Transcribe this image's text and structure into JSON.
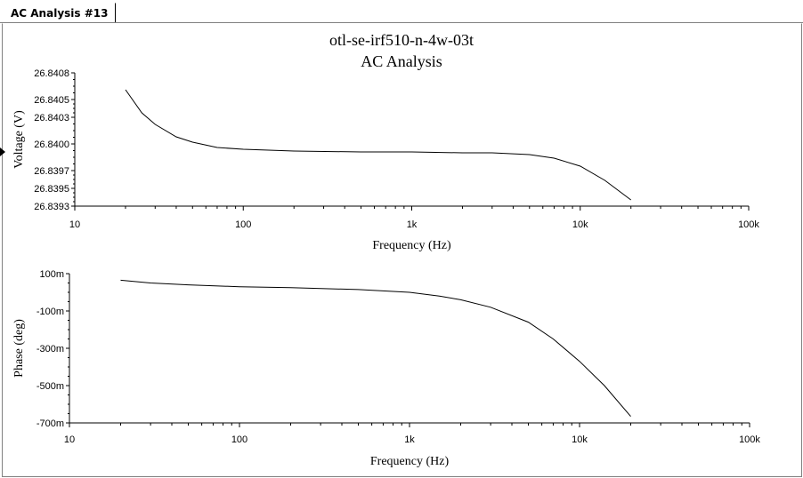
{
  "window": {
    "tab_label": "AC Analysis #13"
  },
  "chart_data": [
    {
      "type": "line",
      "title": "otl-se-irf510-n-4w-03t",
      "subtitle": "AC Analysis",
      "xlabel": "Frequency (Hz)",
      "ylabel": "Voltage (V)",
      "xscale": "log",
      "xlim": [
        10,
        100000
      ],
      "ylim": [
        26.8393,
        26.8408
      ],
      "x_ticks": [
        10,
        100,
        1000,
        10000,
        100000
      ],
      "x_tick_labels": [
        "10",
        "100",
        "1k",
        "10k",
        "100k"
      ],
      "y_ticks": [
        26.8393,
        26.8395,
        26.8397,
        26.84,
        26.8403,
        26.8405,
        26.8408
      ],
      "y_tick_labels": [
        "26.8393",
        "26.8395",
        "26.8397",
        "26.8400",
        "26.8403",
        "26.8405",
        "26.8408"
      ],
      "grid": false,
      "line_color": "#000000",
      "x": [
        20,
        25,
        30,
        40,
        50,
        70,
        100,
        200,
        500,
        1000,
        2000,
        3000,
        5000,
        7000,
        10000,
        14000,
        20000
      ],
      "y": [
        26.84061,
        26.84035,
        26.84022,
        26.84008,
        26.84002,
        26.83996,
        26.83994,
        26.83992,
        26.83991,
        26.83991,
        26.8399,
        26.8399,
        26.83988,
        26.83984,
        26.83975,
        26.83959,
        26.83937
      ]
    },
    {
      "type": "line",
      "title": "",
      "xlabel": "Frequency (Hz)",
      "ylabel": "Phase (deg)",
      "xscale": "log",
      "xlim": [
        10,
        100000
      ],
      "ylim": [
        -0.7,
        0.1
      ],
      "x_ticks": [
        10,
        100,
        1000,
        10000,
        100000
      ],
      "x_tick_labels": [
        "10",
        "100",
        "1k",
        "10k",
        "100k"
      ],
      "y_ticks": [
        0.1,
        -0.1,
        -0.3,
        -0.5,
        -0.7
      ],
      "y_tick_labels": [
        "100m",
        "-100m",
        "-300m",
        "-500m",
        "-700m"
      ],
      "grid": false,
      "line_color": "#000000",
      "x": [
        20,
        30,
        50,
        100,
        200,
        500,
        1000,
        1500,
        2000,
        3000,
        5000,
        7000,
        10000,
        14000,
        20000
      ],
      "y": [
        0.065,
        0.05,
        0.04,
        0.03,
        0.025,
        0.015,
        0.0,
        -0.02,
        -0.04,
        -0.08,
        -0.16,
        -0.25,
        -0.37,
        -0.5,
        -0.665
      ]
    }
  ]
}
